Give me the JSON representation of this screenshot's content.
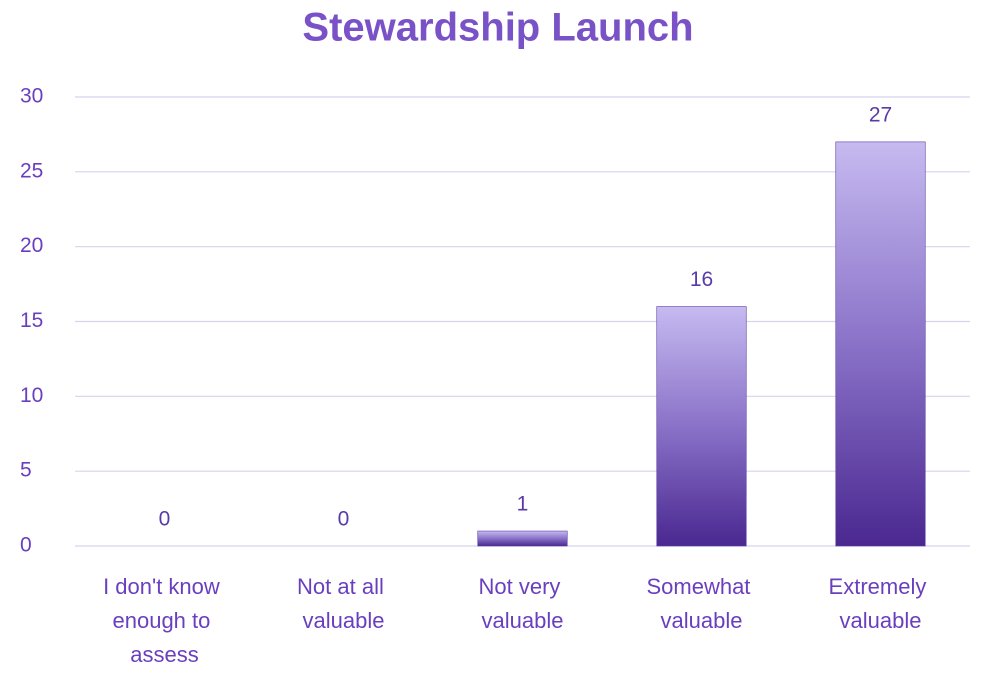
{
  "chart_data": {
    "type": "bar",
    "title": "Stewardship Launch",
    "categories": [
      "I don't know enough to assess",
      "Not at all valuable",
      "Not very valuable",
      "Somewhat valuable",
      "Extremely valuable"
    ],
    "values": [
      0,
      0,
      1,
      16,
      27
    ],
    "color": "#7a60c0",
    "ylim": [
      0,
      30
    ],
    "yticks": [
      0,
      5,
      10,
      15,
      20,
      25,
      30
    ],
    "grid": true
  }
}
